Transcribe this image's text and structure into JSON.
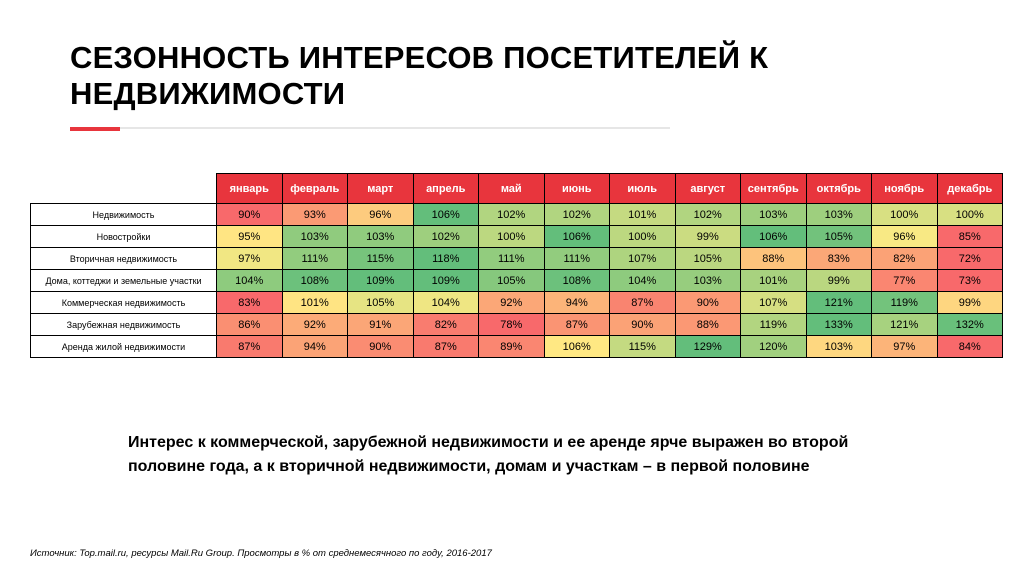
{
  "title": "СЕЗОННОСТЬ ИНТЕРЕСОВ ПОСЕТИТЕЛЕЙ К НЕДВИЖИМОСТИ",
  "summary": "Интерес к коммерческой, зарубежной недвижимости и ее аренде ярче выражен во второй половине года, а к вторичной недвижимости, домам и участкам – в первой половине",
  "source": "Источник: Top.mail.ru, ресурсы Mail.Ru Group. Просмотры в % от среднемесячного по году, 2016-2017",
  "colors": {
    "accent": "#e8353d",
    "header_bg": "#e8353d",
    "scale_low": "#f8696b",
    "scale_mid": "#ffeb84",
    "scale_high": "#63be7b"
  },
  "chart_data": {
    "type": "heatmap",
    "value_suffix": "%",
    "color_scale": "red-yellow-green (low to high)",
    "columns": [
      "январь",
      "февраль",
      "март",
      "апрель",
      "май",
      "июнь",
      "июль",
      "август",
      "сентябрь",
      "октябрь",
      "ноябрь",
      "декабрь"
    ],
    "rows": [
      {
        "label": "Недвижимость",
        "values": [
          90,
          93,
          96,
          106,
          102,
          102,
          101,
          102,
          103,
          103,
          100,
          100
        ]
      },
      {
        "label": "Новостройки",
        "values": [
          95,
          103,
          103,
          102,
          100,
          106,
          100,
          99,
          106,
          105,
          96,
          85
        ]
      },
      {
        "label": "Вторичная недвижимость",
        "values": [
          97,
          111,
          115,
          118,
          111,
          111,
          107,
          105,
          88,
          83,
          82,
          72
        ]
      },
      {
        "label": "Дома, коттеджи и земельные участки",
        "values": [
          104,
          108,
          109,
          109,
          105,
          108,
          104,
          103,
          101,
          99,
          77,
          73
        ]
      },
      {
        "label": "Коммерческая недвижимость",
        "values": [
          83,
          101,
          105,
          104,
          92,
          94,
          87,
          90,
          107,
          121,
          119,
          99
        ]
      },
      {
        "label": "Зарубежная недвижимость",
        "values": [
          86,
          92,
          91,
          82,
          78,
          87,
          90,
          88,
          119,
          133,
          121,
          132
        ]
      },
      {
        "label": "Аренда жилой недвижимости",
        "values": [
          87,
          94,
          90,
          87,
          89,
          106,
          115,
          129,
          120,
          103,
          97,
          84
        ]
      }
    ]
  }
}
